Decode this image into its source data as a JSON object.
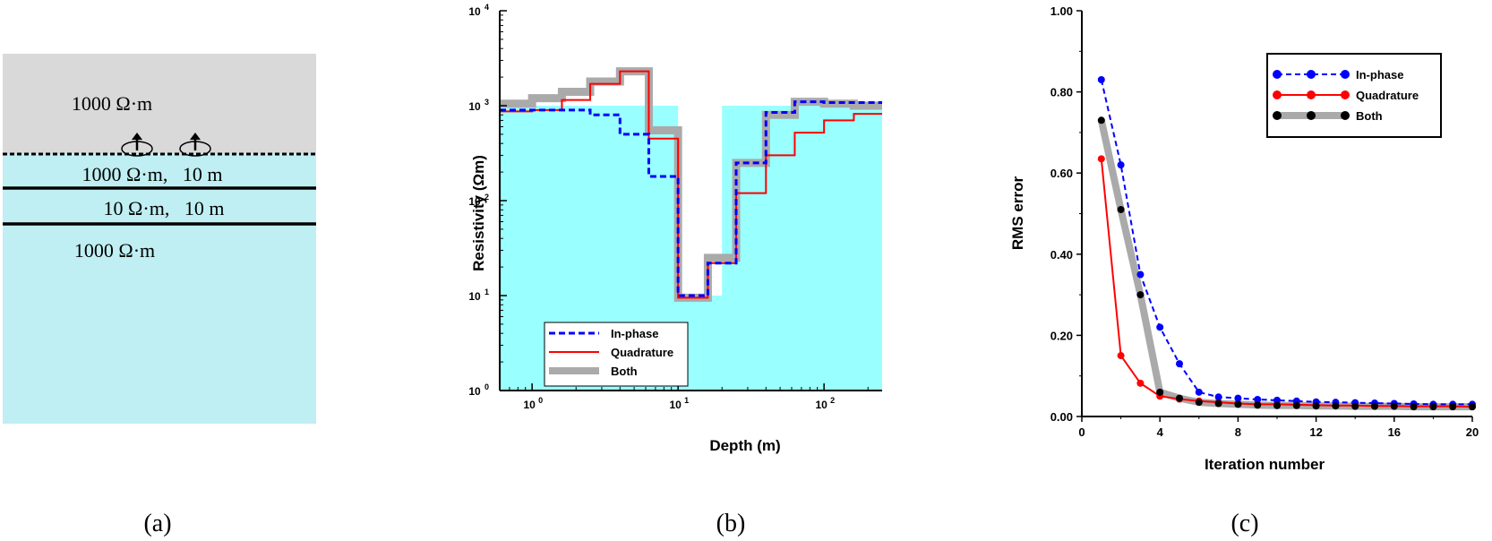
{
  "panel_a": {
    "caption": "(a)",
    "colors": {
      "air": "#d9d9d9",
      "earth": "#bfeff2",
      "line": "#000000"
    },
    "icon": "loop-transmitter-icon",
    "layers": [
      {
        "label": "1000 Ω·m"
      },
      {
        "label": "1000 Ω·m,   10 m"
      },
      {
        "label": "10 Ω·m,   10 m"
      },
      {
        "label": "1000 Ω·m"
      }
    ]
  },
  "panel_b": {
    "caption": "(b)",
    "xlabel": "Depth (m)",
    "ylabel": "Resistivity (Ωm)",
    "x_ticks": [
      "10",
      "10",
      "10"
    ],
    "x_tick_exps": [
      "0",
      "1",
      "2"
    ],
    "y_ticks": [
      "10",
      "10",
      "10",
      "10",
      "10"
    ],
    "y_tick_exps": [
      "0",
      "1",
      "2",
      "3",
      "4"
    ],
    "legend": [
      "In-phase",
      "Quadrature",
      "Both"
    ],
    "fill_color": "#99ffff"
  },
  "panel_c": {
    "caption": "(c)",
    "xlabel": "Iteration number",
    "ylabel": "RMS error",
    "x_ticks": [
      "0",
      "4",
      "8",
      "12",
      "16",
      "20"
    ],
    "y_ticks": [
      "0.00",
      "0.20",
      "0.40",
      "0.60",
      "0.80",
      "1.00"
    ],
    "legend": [
      "In-phase",
      "Quadrature",
      "Both"
    ]
  },
  "chart_data": [
    {
      "type": "line",
      "xlabel": "Depth (m)",
      "ylabel": "Resistivity (Ωm)",
      "x_scale": "log",
      "y_scale": "log",
      "xlim": [
        0.6,
        250
      ],
      "ylim": [
        1,
        10000
      ],
      "grid": false,
      "legend_position": "bottom-left",
      "true_model": {
        "x": [
          0.6,
          10,
          10,
          20,
          20,
          250
        ],
        "y": [
          1000,
          1000,
          10,
          10,
          1000,
          1000
        ]
      },
      "series": [
        {
          "name": "In-phase",
          "color": "#0000ff",
          "style": "dashed",
          "x": [
            0.6,
            2.5,
            2.5,
            4,
            4,
            6.3,
            6.3,
            10,
            10,
            16,
            16,
            25,
            25,
            40,
            40,
            63,
            63,
            100,
            100,
            250
          ],
          "y": [
            900,
            900,
            800,
            800,
            500,
            500,
            180,
            180,
            10,
            10,
            22,
            22,
            250,
            250,
            850,
            850,
            1100,
            1100,
            1080,
            1080
          ]
        },
        {
          "name": "Quadrature",
          "color": "#ff0000",
          "style": "solid",
          "x": [
            0.6,
            1,
            1,
            1.6,
            1.6,
            2.5,
            2.5,
            4,
            4,
            6.3,
            6.3,
            10,
            10,
            16,
            16,
            25,
            25,
            40,
            40,
            63,
            63,
            100,
            100,
            160,
            160,
            250
          ],
          "y": [
            870,
            870,
            900,
            900,
            1150,
            1150,
            1700,
            1700,
            2300,
            2300,
            450,
            450,
            9.5,
            9.5,
            22,
            22,
            120,
            120,
            300,
            300,
            520,
            520,
            700,
            700,
            820,
            820
          ]
        },
        {
          "name": "Both",
          "color": "#aaaaaa",
          "style": "solid",
          "x": [
            0.6,
            1,
            1,
            1.6,
            1.6,
            2.5,
            2.5,
            4,
            4,
            6.3,
            6.3,
            10,
            10,
            16,
            16,
            25,
            25,
            40,
            40,
            63,
            63,
            100,
            100,
            160,
            160,
            250
          ],
          "y": [
            1050,
            1050,
            1200,
            1200,
            1400,
            1400,
            1800,
            1800,
            2300,
            2300,
            550,
            550,
            9.5,
            9.5,
            25,
            25,
            250,
            250,
            800,
            800,
            1100,
            1100,
            1050,
            1050,
            1000,
            1000
          ]
        }
      ]
    },
    {
      "type": "line",
      "xlabel": "Iteration number",
      "ylabel": "RMS error",
      "xlim": [
        0,
        20
      ],
      "ylim": [
        0,
        1
      ],
      "grid": false,
      "legend_position": "top-right",
      "series": [
        {
          "name": "In-phase",
          "color": "#0000ff",
          "style": "dashed",
          "x": [
            1,
            2,
            3,
            4,
            5,
            6,
            7,
            8,
            9,
            10,
            11,
            12,
            13,
            14,
            15,
            16,
            17,
            18,
            19,
            20
          ],
          "y": [
            0.83,
            0.62,
            0.35,
            0.22,
            0.13,
            0.06,
            0.048,
            0.045,
            0.042,
            0.04,
            0.038,
            0.036,
            0.035,
            0.034,
            0.033,
            0.032,
            0.031,
            0.03,
            0.03,
            0.03
          ]
        },
        {
          "name": "Quadrature",
          "color": "#ff0000",
          "style": "solid",
          "x": [
            1,
            2,
            3,
            4,
            5,
            6,
            7,
            8,
            9,
            10,
            11,
            12,
            13,
            14,
            15,
            16,
            17,
            18,
            19,
            20
          ],
          "y": [
            0.635,
            0.15,
            0.082,
            0.05,
            0.043,
            0.038,
            0.035,
            0.032,
            0.03,
            0.03,
            0.029,
            0.028,
            0.027,
            0.027,
            0.026,
            0.026,
            0.025,
            0.025,
            0.025,
            0.024
          ]
        },
        {
          "name": "Both",
          "color": "#000000",
          "style": "thick",
          "x": [
            1,
            2,
            3,
            4,
            5,
            6,
            7,
            8,
            9,
            10,
            11,
            12,
            13,
            14,
            15,
            16,
            17,
            18,
            19,
            20
          ],
          "y": [
            0.73,
            0.51,
            0.3,
            0.06,
            0.045,
            0.035,
            0.032,
            0.03,
            0.028,
            0.027,
            0.027,
            0.026,
            0.026,
            0.025,
            0.025,
            0.025,
            0.024,
            0.024,
            0.024,
            0.024
          ]
        }
      ]
    }
  ]
}
